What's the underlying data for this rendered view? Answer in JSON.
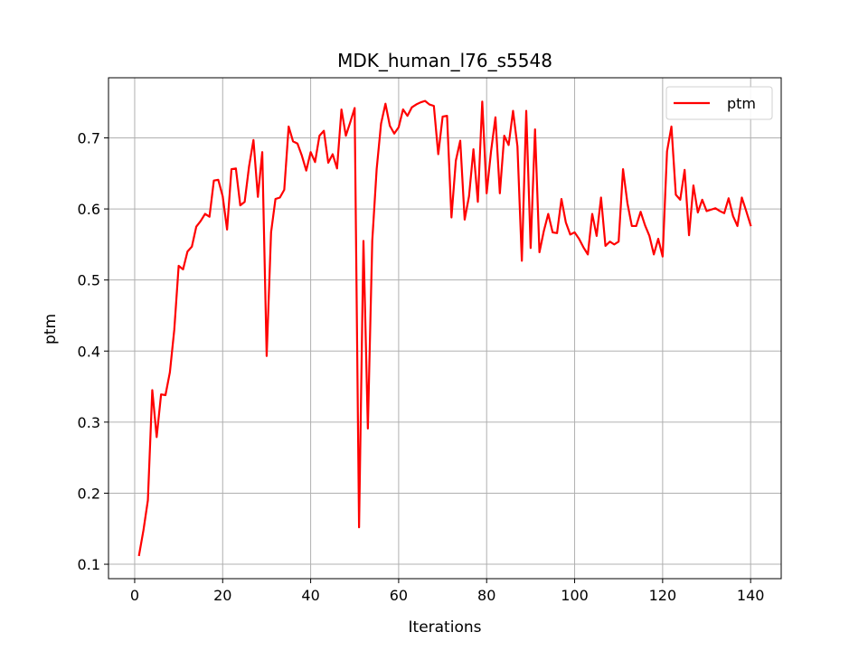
{
  "chart_data": {
    "type": "line",
    "title": "MDK_human_l76_s5548",
    "xlabel": "Iterations",
    "ylabel": "ptm",
    "xlim": [
      -5.95,
      146.95
    ],
    "ylim": [
      0.0797,
      0.7846
    ],
    "xticks": [
      0,
      20,
      40,
      60,
      80,
      100,
      120,
      140
    ],
    "yticks": [
      0.1,
      0.2,
      0.3,
      0.4,
      0.5,
      0.6,
      0.7
    ],
    "ytick_labels": [
      "0.1",
      "0.2",
      "0.3",
      "0.4",
      "0.5",
      "0.6",
      "0.7"
    ],
    "grid": true,
    "legend": {
      "location": "upper right",
      "entries": [
        "ptm"
      ]
    },
    "series": [
      {
        "name": "ptm",
        "color": "#ff0000",
        "x": [
          1,
          2,
          3,
          4,
          5,
          6,
          7,
          8,
          9,
          10,
          11,
          12,
          13,
          14,
          15,
          16,
          17,
          18,
          19,
          20,
          21,
          22,
          23,
          24,
          25,
          26,
          27,
          28,
          29,
          30,
          31,
          32,
          33,
          34,
          35,
          36,
          37,
          38,
          39,
          40,
          41,
          42,
          43,
          44,
          45,
          46,
          47,
          48,
          49,
          50,
          51,
          52,
          53,
          54,
          55,
          56,
          57,
          58,
          59,
          60,
          61,
          62,
          63,
          64,
          65,
          66,
          67,
          68,
          69,
          70,
          71,
          72,
          73,
          74,
          75,
          76,
          77,
          78,
          79,
          80,
          81,
          82,
          83,
          84,
          85,
          86,
          87,
          88,
          89,
          90,
          91,
          92,
          93,
          94,
          95,
          96,
          97,
          98,
          99,
          100,
          101,
          102,
          103,
          104,
          105,
          106,
          107,
          108,
          109,
          110,
          111,
          112,
          113,
          114,
          115,
          116,
          117,
          118,
          119,
          120,
          121,
          122,
          123,
          124,
          125,
          126,
          127,
          128,
          129,
          130,
          131,
          132,
          133,
          134,
          135,
          136,
          137,
          138,
          139,
          140
        ],
        "values": [
          0.113,
          0.148,
          0.19,
          0.345,
          0.279,
          0.339,
          0.338,
          0.37,
          0.43,
          0.52,
          0.515,
          0.54,
          0.547,
          0.575,
          0.583,
          0.593,
          0.589,
          0.64,
          0.641,
          0.618,
          0.571,
          0.656,
          0.657,
          0.605,
          0.61,
          0.66,
          0.697,
          0.617,
          0.68,
          0.393,
          0.567,
          0.614,
          0.616,
          0.627,
          0.716,
          0.695,
          0.692,
          0.675,
          0.654,
          0.68,
          0.666,
          0.703,
          0.71,
          0.665,
          0.677,
          0.657,
          0.74,
          0.703,
          0.722,
          0.742,
          0.152,
          0.555,
          0.291,
          0.555,
          0.656,
          0.72,
          0.748,
          0.717,
          0.706,
          0.715,
          0.74,
          0.731,
          0.743,
          0.747,
          0.75,
          0.752,
          0.747,
          0.745,
          0.677,
          0.73,
          0.731,
          0.588,
          0.668,
          0.696,
          0.585,
          0.618,
          0.684,
          0.61,
          0.751,
          0.622,
          0.681,
          0.729,
          0.622,
          0.703,
          0.69,
          0.738,
          0.688,
          0.527,
          0.738,
          0.545,
          0.712,
          0.539,
          0.569,
          0.593,
          0.567,
          0.566,
          0.614,
          0.581,
          0.564,
          0.567,
          0.558,
          0.546,
          0.536,
          0.593,
          0.562,
          0.616,
          0.548,
          0.554,
          0.55,
          0.554,
          0.656,
          0.608,
          0.576,
          0.576,
          0.596,
          0.577,
          0.562,
          0.536,
          0.558,
          0.533,
          0.681,
          0.716,
          0.62,
          0.613,
          0.655,
          0.563,
          0.633,
          0.595,
          0.613,
          0.597,
          0.599,
          0.601,
          0.597,
          0.594,
          0.615,
          0.59,
          0.576,
          0.616,
          0.597,
          0.577
        ]
      }
    ]
  }
}
